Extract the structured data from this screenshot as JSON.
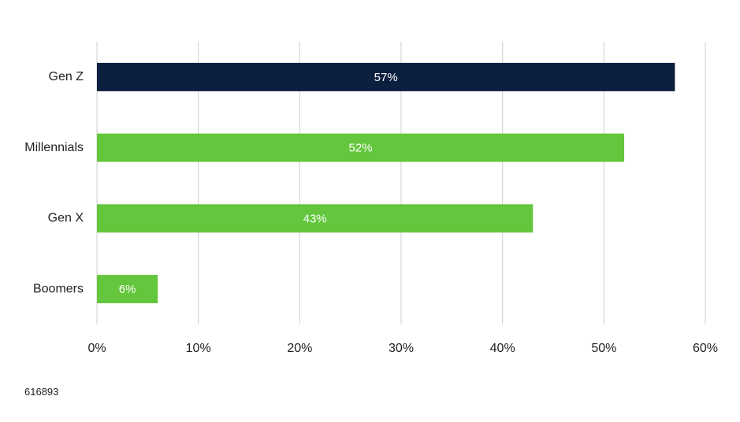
{
  "chart_data": {
    "type": "bar",
    "orientation": "horizontal",
    "categories": [
      "Gen Z",
      "Millennials",
      "Gen X",
      "Boomers"
    ],
    "values": [
      57,
      52,
      43,
      6
    ],
    "data_labels": [
      "57%",
      "52%",
      "43%",
      "6%"
    ],
    "colors": [
      "#0b1f3f",
      "#63c63c",
      "#63c63c",
      "#63c63c"
    ],
    "xlim": [
      0,
      60
    ],
    "x_ticks": [
      0,
      10,
      20,
      30,
      40,
      50,
      60
    ],
    "x_tick_labels": [
      "0%",
      "10%",
      "20%",
      "30%",
      "40%",
      "50%",
      "60%"
    ],
    "grid": true,
    "legend": "none"
  },
  "footnote": "616893"
}
